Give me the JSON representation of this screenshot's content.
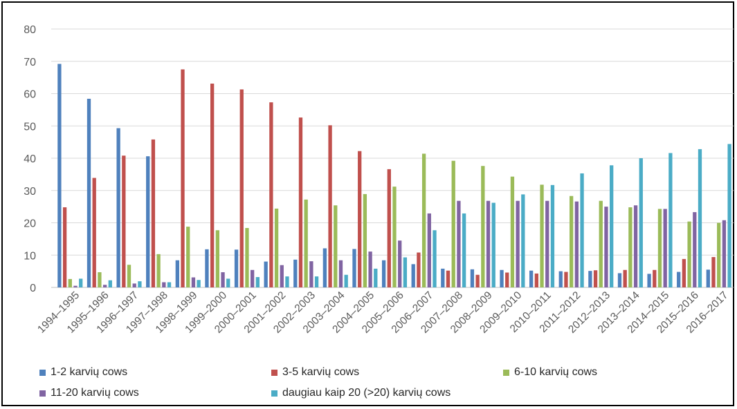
{
  "chart_data": {
    "type": "bar",
    "categories": [
      "1994–1995",
      "1995–1996",
      "1996–1997",
      "1997–1998",
      "1998–1999",
      "1999–2000",
      "2000–2001",
      "2001–2002",
      "2002–2003",
      "2003–2004",
      "2004–2005",
      "2005–2006",
      "2006–2007",
      "2007–2008",
      "2008–2009",
      "2009–2010",
      "2010–2011",
      "2011–2012",
      "2012–2013",
      "2013–2014",
      "2014–2015",
      "2015–2016",
      "2016–2017"
    ],
    "series": [
      {
        "name": "1-2 karvių cows",
        "color": "#4F81BD",
        "values": [
          69.2,
          58.4,
          49.3,
          40.6,
          8.4,
          11.8,
          11.7,
          8.0,
          8.6,
          12.1,
          11.9,
          8.4,
          7.2,
          5.8,
          5.6,
          5.4,
          5.2,
          5.0,
          5.1,
          4.4,
          4.2,
          4.8,
          5.5
        ]
      },
      {
        "name": "3-5 karvių cows",
        "color": "#C0504D",
        "values": [
          24.8,
          33.9,
          40.8,
          45.8,
          67.5,
          63.1,
          61.3,
          57.3,
          52.6,
          50.2,
          42.2,
          36.6,
          10.8,
          5.2,
          3.9,
          4.6,
          4.3,
          4.8,
          5.3,
          5.4,
          5.4,
          8.8,
          9.4
        ]
      },
      {
        "name": "6-10 karvių cows",
        "color": "#9BBB59",
        "values": [
          2.6,
          4.7,
          7.0,
          10.3,
          18.8,
          17.7,
          18.4,
          24.4,
          27.2,
          25.4,
          28.9,
          31.2,
          41.4,
          39.2,
          37.6,
          34.3,
          31.8,
          28.3,
          26.8,
          24.8,
          24.3,
          20.4,
          20.0
        ]
      },
      {
        "name": "11-20 karvių cows",
        "color": "#8064A2",
        "values": [
          0.5,
          0.8,
          1.2,
          1.6,
          3.1,
          4.7,
          5.4,
          6.9,
          8.1,
          8.4,
          11.1,
          14.5,
          22.9,
          26.8,
          26.8,
          26.8,
          26.8,
          26.6,
          25.0,
          25.4,
          24.3,
          23.3,
          20.8
        ]
      },
      {
        "name": "daugiau kaip 20 (>20) karvių cows",
        "color": "#4BACC6",
        "values": [
          2.7,
          2.2,
          1.9,
          1.6,
          2.3,
          2.7,
          3.2,
          3.4,
          3.4,
          3.9,
          5.8,
          9.3,
          17.7,
          22.9,
          26.2,
          28.8,
          31.7,
          35.3,
          37.8,
          40.0,
          41.6,
          42.8,
          44.4
        ]
      }
    ],
    "ylim": [
      0,
      80
    ],
    "yticks": [
      "0",
      "10",
      "20",
      "30",
      "40",
      "50",
      "60",
      "70",
      "80"
    ],
    "grid": true,
    "legend_position": "bottom",
    "title": "",
    "xlabel": "",
    "ylabel": ""
  },
  "colors": {
    "grid": "#D9D9D9",
    "axis_text": "#595959",
    "frame": "#000000"
  }
}
